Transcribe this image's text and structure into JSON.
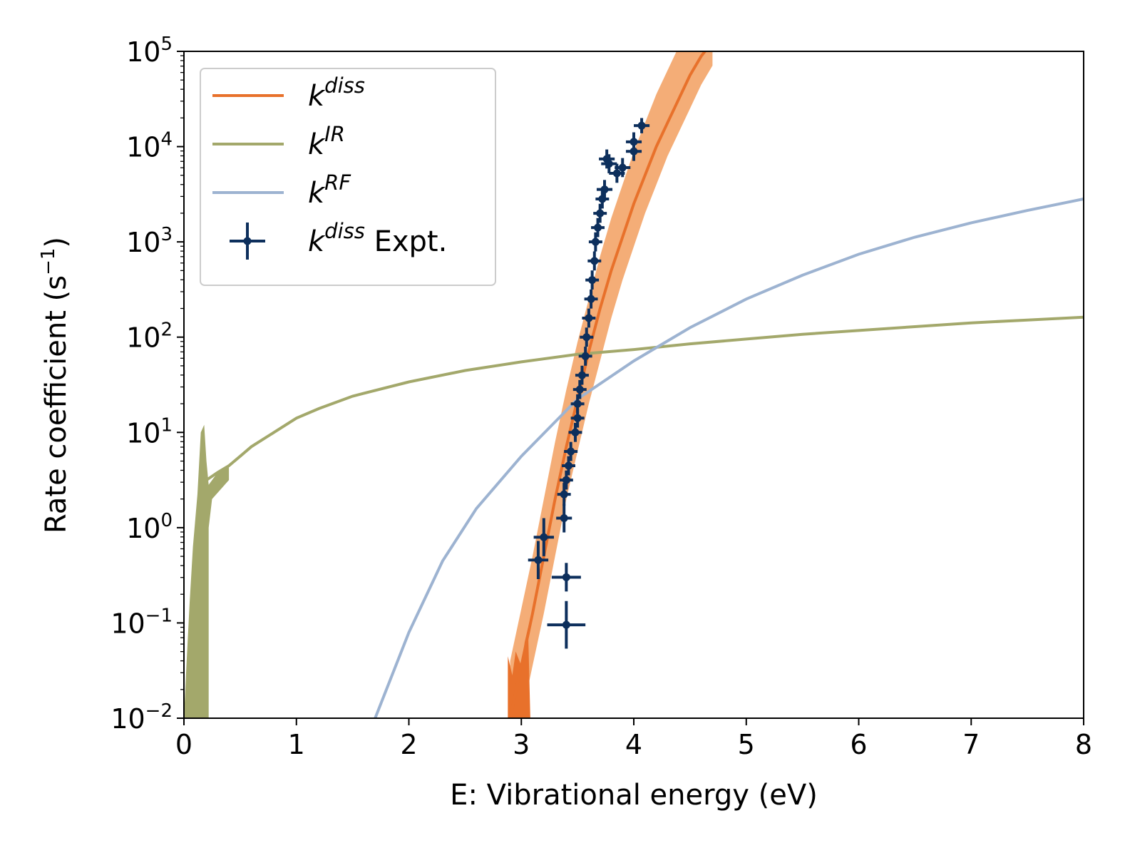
{
  "chart_data": {
    "type": "line",
    "xlabel": "E: Vibrational energy (eV)",
    "ylabel_main": "Rate coefficient (s",
    "ylabel_sup": "−1",
    "ylabel_end": ")",
    "xlim": [
      0,
      8
    ],
    "ylim_log10": [
      -2,
      5
    ],
    "yscale": "log",
    "xticks": [
      0,
      1,
      2,
      3,
      4,
      5,
      6,
      7,
      8
    ],
    "yticks": [
      {
        "exp": -2,
        "base": "10",
        "sup": "−2"
      },
      {
        "exp": -1,
        "base": "10",
        "sup": "−1"
      },
      {
        "exp": 0,
        "base": "10",
        "sup": "0"
      },
      {
        "exp": 1,
        "base": "10",
        "sup": "1"
      },
      {
        "exp": 2,
        "base": "10",
        "sup": "2"
      },
      {
        "exp": 3,
        "base": "10",
        "sup": "3"
      },
      {
        "exp": 4,
        "base": "10",
        "sup": "4"
      },
      {
        "exp": 5,
        "base": "10",
        "sup": "5"
      }
    ],
    "legend_position": "upper-left",
    "series": [
      {
        "name": "k_diss",
        "label_base": "k",
        "label_sup": "diss",
        "label_suffix": "",
        "color": "#e8712b",
        "band_color": "#f4ad77",
        "x": [
          2.9,
          3.0,
          3.1,
          3.2,
          3.3,
          3.4,
          3.5,
          3.6,
          3.7,
          3.8,
          3.9,
          4.0,
          4.1,
          4.2,
          4.3,
          4.4,
          4.5,
          4.6,
          4.7
        ],
        "log10_y": [
          -2.0,
          -1.45,
          -0.9,
          -0.3,
          0.3,
          0.85,
          1.35,
          1.85,
          2.3,
          2.7,
          3.05,
          3.4,
          3.7,
          4.0,
          4.25,
          4.5,
          4.75,
          4.95,
          5.1
        ],
        "band_lower_log10": [
          -2.6,
          -2.0,
          -1.45,
          -0.9,
          -0.3,
          0.3,
          0.8,
          1.3,
          1.75,
          2.2,
          2.6,
          2.95,
          3.3,
          3.6,
          3.9,
          4.15,
          4.4,
          4.65,
          4.85
        ],
        "band_upper_log10": [
          -1.4,
          -0.85,
          -0.3,
          0.3,
          0.9,
          1.45,
          1.95,
          2.4,
          2.85,
          3.25,
          3.6,
          3.95,
          4.25,
          4.55,
          4.8,
          5.05,
          5.3,
          5.5,
          5.7
        ]
      },
      {
        "name": "k_IR",
        "label_base": "k",
        "label_sup": "IR",
        "label_suffix": "",
        "color": "#a3a86b",
        "x": [
          0.2,
          0.3,
          0.4,
          0.5,
          0.6,
          0.8,
          1.0,
          1.2,
          1.5,
          2.0,
          2.5,
          3.0,
          3.5,
          4.0,
          4.5,
          5.0,
          5.5,
          6.0,
          6.5,
          7.0,
          7.5,
          8.0
        ],
        "log10_y": [
          0.5,
          0.58,
          0.65,
          0.75,
          0.85,
          1.0,
          1.15,
          1.25,
          1.38,
          1.53,
          1.65,
          1.74,
          1.82,
          1.87,
          1.93,
          1.98,
          2.03,
          2.07,
          2.11,
          2.15,
          2.18,
          2.21
        ],
        "noisy_region": {
          "x_start": 0.0,
          "x_end": 0.22,
          "peak_x": 0.18,
          "peak_log10": 1.08
        }
      },
      {
        "name": "k_RF",
        "label_base": "k",
        "label_sup": "RF",
        "label_suffix": "",
        "color": "#9db3d1",
        "x": [
          1.7,
          2.0,
          2.3,
          2.6,
          3.0,
          3.5,
          4.0,
          4.5,
          5.0,
          5.5,
          6.0,
          6.5,
          7.0,
          7.5,
          8.0
        ],
        "log10_y": [
          -2.0,
          -1.1,
          -0.35,
          0.2,
          0.75,
          1.35,
          1.75,
          2.1,
          2.4,
          2.65,
          2.87,
          3.05,
          3.2,
          3.33,
          3.45
        ]
      }
    ],
    "experiment": {
      "name": "k_diss_expt",
      "label_base": "k",
      "label_sup": "diss",
      "label_suffix": " Expt.",
      "color": "#0d2f5c",
      "points": [
        {
          "x": 3.4,
          "log10_y": -1.02,
          "xerr": 0.17,
          "yerr": 0.25
        },
        {
          "x": 3.4,
          "log10_y": -0.52,
          "xerr": 0.13,
          "yerr": 0.15
        },
        {
          "x": 3.15,
          "log10_y": -0.34,
          "xerr": 0.09,
          "yerr": 0.2
        },
        {
          "x": 3.2,
          "log10_y": -0.1,
          "xerr": 0.09,
          "yerr": 0.2
        },
        {
          "x": 3.38,
          "log10_y": 0.1,
          "xerr": 0.07,
          "yerr": 0.15
        },
        {
          "x": 3.38,
          "log10_y": 0.35,
          "xerr": 0.06,
          "yerr": 0.12
        },
        {
          "x": 3.4,
          "log10_y": 0.5,
          "xerr": 0.06,
          "yerr": 0.1
        },
        {
          "x": 3.42,
          "log10_y": 0.65,
          "xerr": 0.06,
          "yerr": 0.1
        },
        {
          "x": 3.44,
          "log10_y": 0.8,
          "xerr": 0.06,
          "yerr": 0.1
        },
        {
          "x": 3.48,
          "log10_y": 1.0,
          "xerr": 0.06,
          "yerr": 0.1
        },
        {
          "x": 3.5,
          "log10_y": 1.15,
          "xerr": 0.06,
          "yerr": 0.1
        },
        {
          "x": 3.5,
          "log10_y": 1.3,
          "xerr": 0.06,
          "yerr": 0.1
        },
        {
          "x": 3.52,
          "log10_y": 1.45,
          "xerr": 0.06,
          "yerr": 0.1
        },
        {
          "x": 3.54,
          "log10_y": 1.6,
          "xerr": 0.06,
          "yerr": 0.1
        },
        {
          "x": 3.57,
          "log10_y": 1.8,
          "xerr": 0.06,
          "yerr": 0.1
        },
        {
          "x": 3.58,
          "log10_y": 2.0,
          "xerr": 0.06,
          "yerr": 0.1
        },
        {
          "x": 3.6,
          "log10_y": 2.2,
          "xerr": 0.06,
          "yerr": 0.1
        },
        {
          "x": 3.62,
          "log10_y": 2.4,
          "xerr": 0.06,
          "yerr": 0.1
        },
        {
          "x": 3.63,
          "log10_y": 2.6,
          "xerr": 0.06,
          "yerr": 0.1
        },
        {
          "x": 3.65,
          "log10_y": 2.8,
          "xerr": 0.06,
          "yerr": 0.1
        },
        {
          "x": 3.66,
          "log10_y": 3.0,
          "xerr": 0.06,
          "yerr": 0.1
        },
        {
          "x": 3.68,
          "log10_y": 3.15,
          "xerr": 0.06,
          "yerr": 0.1
        },
        {
          "x": 3.7,
          "log10_y": 3.3,
          "xerr": 0.06,
          "yerr": 0.1
        },
        {
          "x": 3.72,
          "log10_y": 3.45,
          "xerr": 0.06,
          "yerr": 0.1
        },
        {
          "x": 3.74,
          "log10_y": 3.55,
          "xerr": 0.07,
          "yerr": 0.1
        },
        {
          "x": 3.85,
          "log10_y": 3.72,
          "xerr": 0.07,
          "yerr": 0.1
        },
        {
          "x": 3.9,
          "log10_y": 3.78,
          "xerr": 0.07,
          "yerr": 0.1
        },
        {
          "x": 3.78,
          "log10_y": 3.82,
          "xerr": 0.07,
          "yerr": 0.1
        },
        {
          "x": 3.76,
          "log10_y": 3.87,
          "xerr": 0.07,
          "yerr": 0.1
        },
        {
          "x": 4.0,
          "log10_y": 3.95,
          "xerr": 0.07,
          "yerr": 0.1
        },
        {
          "x": 4.0,
          "log10_y": 4.05,
          "xerr": 0.07,
          "yerr": 0.1
        },
        {
          "x": 4.07,
          "log10_y": 4.22,
          "xerr": 0.07,
          "yerr": 0.08
        }
      ]
    }
  }
}
